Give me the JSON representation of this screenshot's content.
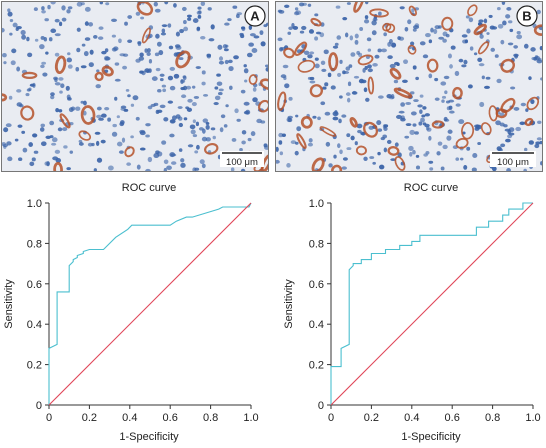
{
  "panels": [
    {
      "label": "A",
      "scale_bar_label": "100 μm",
      "stain_density": 0.35
    },
    {
      "label": "B",
      "scale_bar_label": "100 μm",
      "stain_density": 0.75
    }
  ],
  "colors": {
    "roc_line": "#4bbfcf",
    "reference_line": "#e0475a",
    "axis": "#333333",
    "nuclei": "#3a63a8",
    "stain": "#b5522a",
    "tissue_bg": "#e9ecf2"
  },
  "chart_data": [
    {
      "type": "line",
      "title": "ROC curve",
      "xlabel": "1-Specificity",
      "ylabel": "Sensitivity",
      "xlim": [
        0,
        1
      ],
      "ylim": [
        0,
        1
      ],
      "xticks": [
        "0",
        "0.2",
        "0.4",
        "0.6",
        "0.8",
        "1.0"
      ],
      "yticks": [
        "0",
        "0.2",
        "0.4",
        "0.6",
        "0.8",
        "1.0"
      ],
      "grid": false,
      "series": [
        {
          "role": "roc",
          "x": [
            0,
            0,
            0.04,
            0.04,
            0.1,
            0.1,
            0.12,
            0.12,
            0.14,
            0.14,
            0.17,
            0.17,
            0.2,
            0.27,
            0.33,
            0.39,
            0.41,
            0.43,
            0.6,
            0.63,
            0.68,
            0.71,
            0.84,
            0.86,
            0.99,
            1.0
          ],
          "y": [
            0,
            0.28,
            0.3,
            0.56,
            0.56,
            0.69,
            0.71,
            0.72,
            0.73,
            0.74,
            0.75,
            0.76,
            0.77,
            0.77,
            0.83,
            0.87,
            0.89,
            0.89,
            0.89,
            0.91,
            0.93,
            0.93,
            0.97,
            0.98,
            0.98,
            1.0
          ]
        },
        {
          "role": "reference",
          "x": [
            0,
            1
          ],
          "y": [
            0,
            1
          ]
        }
      ]
    },
    {
      "type": "line",
      "title": "ROC curve",
      "xlabel": "1-Specificity",
      "ylabel": "Sensitivity",
      "xlim": [
        0,
        1
      ],
      "ylim": [
        0,
        1
      ],
      "xticks": [
        "0",
        "0.2",
        "0.4",
        "0.6",
        "0.8",
        "1.0"
      ],
      "yticks": [
        "0",
        "0.2",
        "0.4",
        "0.6",
        "0.8",
        "1.0"
      ],
      "grid": false,
      "series": [
        {
          "role": "roc",
          "x": [
            0,
            0,
            0.05,
            0.05,
            0.09,
            0.09,
            0.11,
            0.11,
            0.15,
            0.15,
            0.2,
            0.2,
            0.27,
            0.27,
            0.34,
            0.34,
            0.4,
            0.4,
            0.44,
            0.44,
            0.72,
            0.72,
            0.78,
            0.78,
            0.85,
            0.85,
            0.88,
            0.88,
            0.95,
            0.95,
            1.0
          ],
          "y": [
            0,
            0.19,
            0.19,
            0.28,
            0.3,
            0.67,
            0.69,
            0.7,
            0.7,
            0.72,
            0.72,
            0.75,
            0.75,
            0.77,
            0.77,
            0.79,
            0.79,
            0.81,
            0.81,
            0.84,
            0.84,
            0.88,
            0.88,
            0.91,
            0.91,
            0.94,
            0.94,
            0.97,
            0.97,
            1.0,
            1.0
          ]
        },
        {
          "role": "reference",
          "x": [
            0,
            1
          ],
          "y": [
            0,
            1
          ]
        }
      ]
    }
  ]
}
